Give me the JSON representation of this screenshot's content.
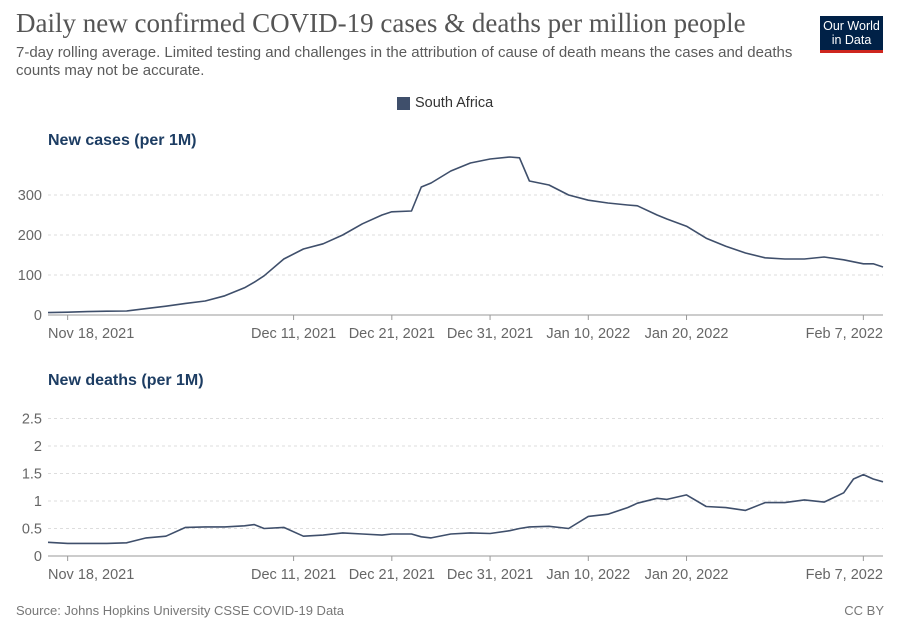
{
  "header": {
    "title": "Daily new confirmed COVID-19 cases & deaths per million people",
    "subtitle": "7-day rolling average. Limited testing and challenges in the attribution of cause of death means the cases and deaths counts may not be accurate.",
    "logo_line1": "Our World",
    "logo_line2": "in Data",
    "logo_color": "#002147",
    "logo_accent": "#ce261e"
  },
  "legend": {
    "label": "South Africa",
    "color": "#3f4f6b"
  },
  "footer": {
    "source": "Source: Johns Hopkins University CSSE COVID-19 Data",
    "license": "CC BY"
  },
  "chart_data": [
    {
      "type": "line",
      "title": "New cases (per 1M)",
      "series_name": "South Africa",
      "start_date": "2021-11-16",
      "end_date": "2022-02-09",
      "x_tick_labels": [
        "Nov 18, 2021",
        "Dec 11, 2021",
        "Dec 21, 2021",
        "Dec 31, 2021",
        "Jan 10, 2022",
        "Jan 20, 2022",
        "Feb 7, 2022"
      ],
      "x_tick_dates": [
        "2021-11-18",
        "2021-12-11",
        "2021-12-21",
        "2021-12-31",
        "2022-01-10",
        "2022-01-20",
        "2022-02-07"
      ],
      "y_ticks": [
        0,
        100,
        200,
        300
      ],
      "ylim": [
        0,
        400
      ],
      "grid": true,
      "color": "#3f4f6b",
      "points": [
        [
          "2021-11-16",
          6
        ],
        [
          "2021-11-18",
          7
        ],
        [
          "2021-11-20",
          8.5
        ],
        [
          "2021-11-22",
          9.5
        ],
        [
          "2021-11-24",
          10
        ],
        [
          "2021-11-26",
          16
        ],
        [
          "2021-11-28",
          22
        ],
        [
          "2021-11-30",
          29
        ],
        [
          "2021-12-02",
          35
        ],
        [
          "2021-12-04",
          48
        ],
        [
          "2021-12-06",
          68
        ],
        [
          "2021-12-07",
          82
        ],
        [
          "2021-12-08",
          98
        ],
        [
          "2021-12-10",
          140
        ],
        [
          "2021-12-12",
          165
        ],
        [
          "2021-12-14",
          178
        ],
        [
          "2021-12-16",
          200
        ],
        [
          "2021-12-18",
          228
        ],
        [
          "2021-12-20",
          250
        ],
        [
          "2021-12-21",
          258
        ],
        [
          "2021-12-23",
          260
        ],
        [
          "2021-12-24",
          320
        ],
        [
          "2021-12-25",
          330
        ],
        [
          "2021-12-27",
          360
        ],
        [
          "2021-12-29",
          380
        ],
        [
          "2021-12-31",
          390
        ],
        [
          "2022-01-02",
          395
        ],
        [
          "2022-01-03",
          393
        ],
        [
          "2022-01-04",
          335
        ],
        [
          "2022-01-06",
          325
        ],
        [
          "2022-01-08",
          300
        ],
        [
          "2022-01-10",
          287
        ],
        [
          "2022-01-12",
          280
        ],
        [
          "2022-01-14",
          275
        ],
        [
          "2022-01-15",
          273
        ],
        [
          "2022-01-17",
          250
        ],
        [
          "2022-01-18",
          240
        ],
        [
          "2022-01-20",
          222
        ],
        [
          "2022-01-22",
          192
        ],
        [
          "2022-01-24",
          172
        ],
        [
          "2022-01-26",
          155
        ],
        [
          "2022-01-28",
          143
        ],
        [
          "2022-01-30",
          140
        ],
        [
          "2022-02-01",
          140
        ],
        [
          "2022-02-03",
          145
        ],
        [
          "2022-02-05",
          138
        ],
        [
          "2022-02-06",
          133
        ],
        [
          "2022-02-07",
          128
        ],
        [
          "2022-02-08",
          128
        ],
        [
          "2022-02-09",
          120
        ]
      ]
    },
    {
      "type": "line",
      "title": "New deaths (per 1M)",
      "series_name": "South Africa",
      "start_date": "2021-11-16",
      "end_date": "2022-02-09",
      "x_tick_labels": [
        "Nov 18, 2021",
        "Dec 11, 2021",
        "Dec 21, 2021",
        "Dec 31, 2021",
        "Jan 10, 2022",
        "Jan 20, 2022",
        "Feb 7, 2022"
      ],
      "x_tick_dates": [
        "2021-11-18",
        "2021-12-11",
        "2021-12-21",
        "2021-12-31",
        "2022-01-10",
        "2022-01-20",
        "2022-02-07"
      ],
      "y_ticks": [
        0,
        0.5,
        1,
        1.5,
        2,
        2.5
      ],
      "y_tick_labels": [
        "0",
        "0.5",
        "1",
        "1.5",
        "2",
        "2.5"
      ],
      "ylim": [
        0,
        2.8
      ],
      "grid": true,
      "color": "#3f4f6b",
      "points": [
        [
          "2021-11-16",
          0.25
        ],
        [
          "2021-11-18",
          0.23
        ],
        [
          "2021-11-20",
          0.23
        ],
        [
          "2021-11-22",
          0.23
        ],
        [
          "2021-11-24",
          0.24
        ],
        [
          "2021-11-26",
          0.33
        ],
        [
          "2021-11-28",
          0.36
        ],
        [
          "2021-11-30",
          0.52
        ],
        [
          "2021-12-02",
          0.53
        ],
        [
          "2021-12-04",
          0.53
        ],
        [
          "2021-12-06",
          0.55
        ],
        [
          "2021-12-07",
          0.57
        ],
        [
          "2021-12-08",
          0.5
        ],
        [
          "2021-12-10",
          0.52
        ],
        [
          "2021-12-12",
          0.36
        ],
        [
          "2021-12-14",
          0.38
        ],
        [
          "2021-12-16",
          0.42
        ],
        [
          "2021-12-18",
          0.4
        ],
        [
          "2021-12-20",
          0.38
        ],
        [
          "2021-12-21",
          0.4
        ],
        [
          "2021-12-23",
          0.4
        ],
        [
          "2021-12-24",
          0.35
        ],
        [
          "2021-12-25",
          0.33
        ],
        [
          "2021-12-27",
          0.4
        ],
        [
          "2021-12-29",
          0.42
        ],
        [
          "2021-12-31",
          0.41
        ],
        [
          "2022-01-02",
          0.46
        ],
        [
          "2022-01-03",
          0.5
        ],
        [
          "2022-01-04",
          0.53
        ],
        [
          "2022-01-06",
          0.54
        ],
        [
          "2022-01-08",
          0.5
        ],
        [
          "2022-01-10",
          0.72
        ],
        [
          "2022-01-12",
          0.76
        ],
        [
          "2022-01-14",
          0.88
        ],
        [
          "2022-01-15",
          0.96
        ],
        [
          "2022-01-17",
          1.05
        ],
        [
          "2022-01-18",
          1.03
        ],
        [
          "2022-01-20",
          1.11
        ],
        [
          "2022-01-22",
          0.9
        ],
        [
          "2022-01-24",
          0.88
        ],
        [
          "2022-01-26",
          0.83
        ],
        [
          "2022-01-28",
          0.97
        ],
        [
          "2022-01-30",
          0.97
        ],
        [
          "2022-02-01",
          1.02
        ],
        [
          "2022-02-03",
          0.98
        ],
        [
          "2022-02-05",
          1.15
        ],
        [
          "2022-02-06",
          1.4
        ],
        [
          "2022-02-07",
          1.48
        ],
        [
          "2022-02-08",
          1.4
        ],
        [
          "2022-02-09",
          1.35
        ]
      ]
    }
  ]
}
